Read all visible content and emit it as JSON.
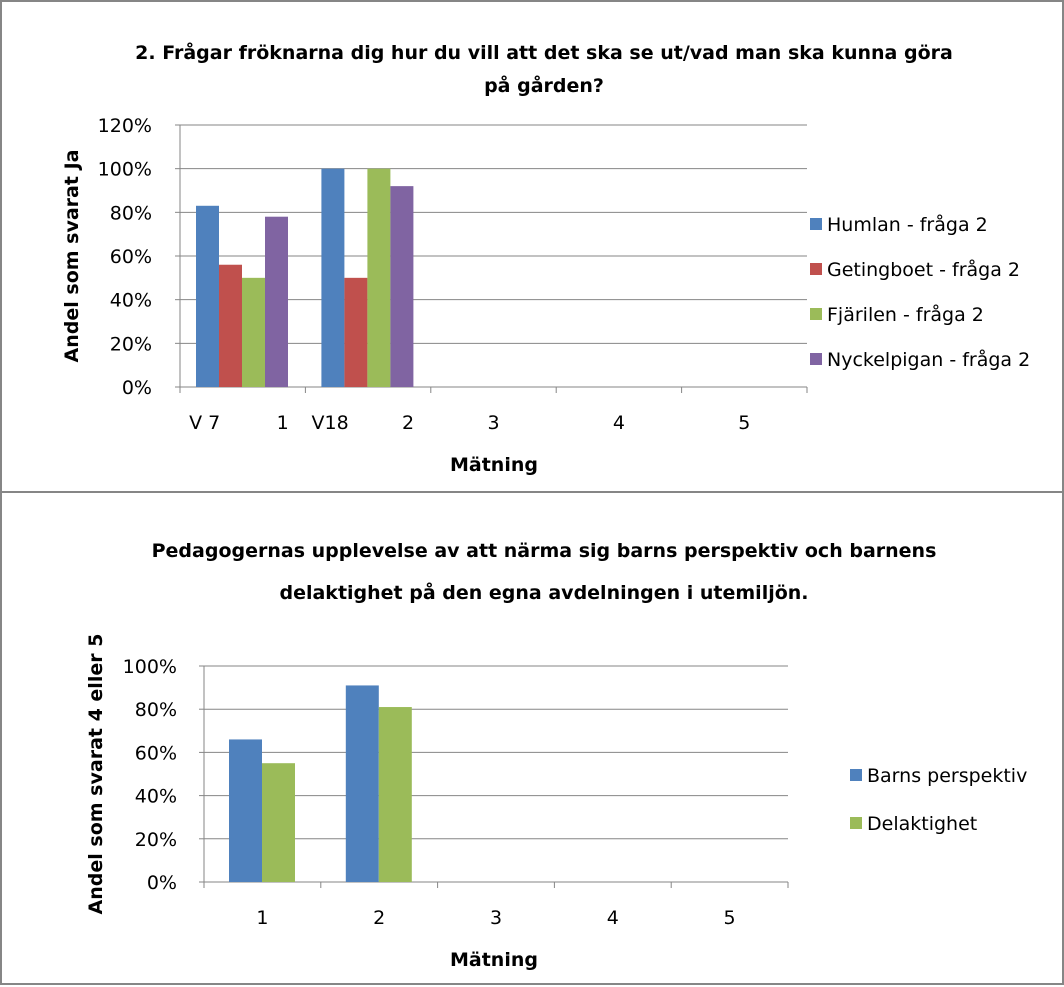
{
  "chart_data": [
    {
      "type": "bar",
      "title_lines": [
        "2. Frågar fröknarna dig hur du vill att det ska se ut/vad man ska kunna göra",
        "på gården?"
      ],
      "xlabel": "Mätning",
      "ylabel": "Andel som svarat Ja",
      "y_ticks": [
        "0%",
        "20%",
        "40%",
        "60%",
        "80%",
        "100%",
        "120%"
      ],
      "ylim": [
        0,
        1.2
      ],
      "grid": true,
      "legend_position": "right",
      "categories": [
        "1",
        "2",
        "3",
        "4",
        "5"
      ],
      "category_sublabels": [
        "V 7",
        "V18",
        "",
        "",
        ""
      ],
      "series": [
        {
          "name": "Humlan - fråga 2",
          "color": "#4F81BD",
          "values": [
            0.83,
            1.0,
            null,
            null,
            null
          ]
        },
        {
          "name": "Getingboet - fråga 2",
          "color": "#C0504D",
          "values": [
            0.56,
            0.5,
            null,
            null,
            null
          ]
        },
        {
          "name": "Fjärilen - fråga 2",
          "color": "#9BBB59",
          "values": [
            0.5,
            1.0,
            null,
            null,
            null
          ]
        },
        {
          "name": "Nyckelpigan - fråga 2",
          "color": "#8064A2",
          "values": [
            0.78,
            0.92,
            null,
            null,
            null
          ]
        }
      ]
    },
    {
      "type": "bar",
      "title_lines": [
        "Pedagogernas upplevelse av att närma sig barns perspektiv och barnens",
        "delaktighet på den egna avdelningen i utemiljön."
      ],
      "xlabel": "Mätning",
      "ylabel": "Andel som svarat 4 eller 5",
      "y_ticks": [
        "0%",
        "20%",
        "40%",
        "60%",
        "80%",
        "100%"
      ],
      "ylim": [
        0,
        1.0
      ],
      "grid": true,
      "legend_position": "right",
      "categories": [
        "1",
        "2",
        "3",
        "4",
        "5"
      ],
      "series": [
        {
          "name": "Barns perspektiv",
          "color": "#4F81BD",
          "values": [
            0.66,
            0.91,
            null,
            null,
            null
          ]
        },
        {
          "name": "Delaktighet",
          "color": "#9BBB59",
          "values": [
            0.55,
            0.81,
            null,
            null,
            null
          ]
        }
      ]
    }
  ]
}
